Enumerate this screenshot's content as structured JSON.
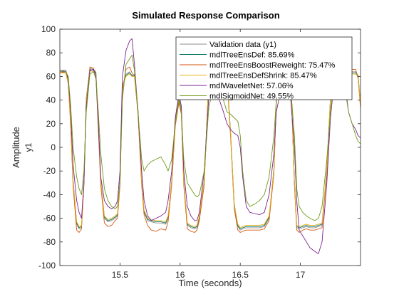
{
  "chart_data": {
    "type": "line",
    "title": "Simulated Response Comparison",
    "xlabel": "Time (seconds)",
    "ylabel": "Amplitude",
    "channel_label": "y1",
    "xlim": [
      15.0,
      17.5
    ],
    "ylim": [
      -100,
      100
    ],
    "xticks": [
      15.5,
      16,
      16.5,
      17
    ],
    "xtick_labels": [
      "15.5",
      "16",
      "16.5",
      "17"
    ],
    "yticks": [
      -100,
      -80,
      -60,
      -40,
      -20,
      0,
      20,
      40,
      60,
      80,
      100
    ],
    "ytick_labels": [
      "-100",
      "-80",
      "-60",
      "-40",
      "-20",
      "0",
      "20",
      "40",
      "60",
      "80",
      "100"
    ],
    "grid": false,
    "legend_position": "top-right",
    "series": [
      {
        "name": "Validation data (y1)",
        "color": "#8c8c8c",
        "x": [
          15.0,
          15.05,
          15.07,
          15.09,
          15.11,
          15.14,
          15.16,
          15.18,
          15.2,
          15.22,
          15.25,
          15.28,
          15.3,
          15.32,
          15.34,
          15.37,
          15.4,
          15.43,
          15.46,
          15.48,
          15.5,
          15.52,
          15.55,
          15.58,
          15.6,
          15.62,
          15.65,
          15.68,
          15.7,
          15.73,
          15.76,
          15.8,
          15.84,
          15.88,
          15.9,
          15.93,
          15.96,
          15.99,
          16.01,
          16.03,
          16.06,
          16.09,
          16.12,
          16.14,
          16.16,
          16.2,
          16.24,
          16.28,
          16.32,
          16.36,
          16.39,
          16.42,
          16.45,
          16.48,
          16.5,
          16.52,
          16.55,
          16.58,
          16.62,
          16.66,
          16.7,
          16.74,
          16.78,
          16.8,
          16.83,
          16.86,
          16.89,
          16.92,
          16.95,
          16.97,
          16.99,
          17.02,
          17.05,
          17.08,
          17.12,
          17.15,
          17.18,
          17.22,
          17.25,
          17.28,
          17.31,
          17.34,
          17.37,
          17.4,
          17.43,
          17.46,
          17.48,
          17.5
        ],
        "y": [
          64,
          64,
          55,
          20,
          -30,
          -65,
          -69,
          -68,
          -30,
          40,
          67,
          66,
          64,
          20,
          -30,
          -60,
          -63,
          -62,
          -60,
          -58,
          -30,
          50,
          62,
          64,
          60,
          62,
          30,
          -30,
          -55,
          -62,
          -63,
          -64,
          -64,
          -65,
          -60,
          -30,
          20,
          40,
          30,
          -30,
          -66,
          -68,
          -69,
          -68,
          -60,
          -30,
          62,
          66,
          65,
          64,
          60,
          10,
          -50,
          -67,
          -70,
          -69,
          -68,
          -68,
          -68,
          -68,
          -67,
          -60,
          -20,
          40,
          60,
          64,
          64,
          62,
          -30,
          -68,
          -69,
          -68,
          -67,
          -68,
          -68,
          -67,
          -66,
          -20,
          40,
          65,
          64,
          65,
          64,
          65,
          64,
          64,
          60,
          35
        ]
      },
      {
        "name": "mdlTreeEnsDef: 85.69%",
        "color": "#0b7a6b",
        "x": [
          15.0,
          15.05,
          15.07,
          15.09,
          15.11,
          15.14,
          15.16,
          15.18,
          15.2,
          15.22,
          15.25,
          15.28,
          15.3,
          15.32,
          15.34,
          15.37,
          15.4,
          15.43,
          15.46,
          15.48,
          15.5,
          15.52,
          15.55,
          15.58,
          15.6,
          15.62,
          15.65,
          15.68,
          15.7,
          15.73,
          15.76,
          15.8,
          15.84,
          15.88,
          15.9,
          15.93,
          15.96,
          15.99,
          16.01,
          16.03,
          16.06,
          16.09,
          16.12,
          16.14,
          16.16,
          16.2,
          16.24,
          16.28,
          16.32,
          16.36,
          16.39,
          16.42,
          16.45,
          16.48,
          16.5,
          16.52,
          16.55,
          16.58,
          16.62,
          16.66,
          16.7,
          16.74,
          16.78,
          16.8,
          16.83,
          16.86,
          16.89,
          16.92,
          16.95,
          16.97,
          16.99,
          17.02,
          17.05,
          17.08,
          17.12,
          17.15,
          17.18,
          17.22,
          17.25,
          17.28,
          17.31,
          17.34,
          17.37,
          17.4,
          17.43,
          17.46,
          17.48,
          17.5
        ],
        "y": [
          64,
          64,
          56,
          22,
          -28,
          -64,
          -68,
          -67,
          -28,
          42,
          66,
          65,
          63,
          22,
          -28,
          -59,
          -62,
          -61,
          -59,
          -57,
          -28,
          52,
          61,
          63,
          61,
          61,
          32,
          -28,
          -54,
          -61,
          -62,
          -63,
          -63,
          -64,
          -59,
          -28,
          22,
          42,
          32,
          -28,
          -65,
          -67,
          -68,
          -67,
          -59,
          -28,
          61,
          65,
          64,
          63,
          61,
          12,
          -48,
          -66,
          -69,
          -68,
          -67,
          -67,
          -67,
          -67,
          -66,
          -59,
          -18,
          42,
          61,
          63,
          63,
          61,
          -28,
          -67,
          -68,
          -67,
          -66,
          -67,
          -67,
          -66,
          -65,
          -18,
          42,
          64,
          63,
          64,
          63,
          64,
          63,
          63,
          61,
          37
        ]
      },
      {
        "name": "mdlTreeEnsBoostReweight: 75.47%",
        "color": "#d3570f",
        "x": [
          15.0,
          15.05,
          15.07,
          15.09,
          15.11,
          15.14,
          15.16,
          15.18,
          15.2,
          15.22,
          15.25,
          15.28,
          15.3,
          15.32,
          15.34,
          15.37,
          15.4,
          15.43,
          15.46,
          15.48,
          15.5,
          15.52,
          15.55,
          15.58,
          15.6,
          15.62,
          15.65,
          15.68,
          15.7,
          15.73,
          15.76,
          15.8,
          15.84,
          15.88,
          15.9,
          15.93,
          15.96,
          15.99,
          16.01,
          16.03,
          16.06,
          16.09,
          16.12,
          16.14,
          16.16,
          16.2,
          16.24,
          16.28,
          16.32,
          16.36,
          16.39,
          16.42,
          16.45,
          16.48,
          16.5,
          16.52,
          16.55,
          16.58,
          16.62,
          16.66,
          16.7,
          16.74,
          16.78,
          16.8,
          16.83,
          16.86,
          16.89,
          16.92,
          16.95,
          16.97,
          16.99,
          17.02,
          17.05,
          17.08,
          17.12,
          17.15,
          17.18,
          17.22,
          17.25,
          17.28,
          17.31,
          17.34,
          17.37,
          17.4,
          17.43,
          17.46,
          17.48,
          17.5
        ],
        "y": [
          64,
          63,
          54,
          18,
          -33,
          -70,
          -72,
          -69,
          -32,
          38,
          68,
          67,
          60,
          15,
          -32,
          -64,
          -67,
          -66,
          -62,
          -60,
          -32,
          48,
          66,
          68,
          63,
          60,
          28,
          -32,
          -57,
          -66,
          -70,
          -71,
          -69,
          -70,
          -63,
          -32,
          18,
          38,
          28,
          -32,
          -69,
          -71,
          -72,
          -70,
          -62,
          -32,
          60,
          68,
          67,
          66,
          58,
          8,
          -52,
          -70,
          -72,
          -71,
          -70,
          -70,
          -70,
          -70,
          -69,
          -62,
          -22,
          38,
          62,
          66,
          66,
          60,
          -32,
          -70,
          -72,
          -70,
          -69,
          -70,
          -70,
          -69,
          -68,
          -22,
          38,
          67,
          66,
          67,
          66,
          67,
          66,
          66,
          58,
          33
        ]
      },
      {
        "name": "mdlTreeEnsDefShrink: 85.47%",
        "color": "#e8b116",
        "x": [
          15.0,
          15.05,
          15.07,
          15.09,
          15.11,
          15.14,
          15.16,
          15.18,
          15.2,
          15.22,
          15.25,
          15.28,
          15.3,
          15.32,
          15.34,
          15.37,
          15.4,
          15.43,
          15.46,
          15.48,
          15.5,
          15.52,
          15.55,
          15.58,
          15.6,
          15.62,
          15.65,
          15.68,
          15.7,
          15.73,
          15.76,
          15.8,
          15.84,
          15.88,
          15.9,
          15.93,
          15.96,
          15.99,
          16.01,
          16.03,
          16.06,
          16.09,
          16.12,
          16.14,
          16.16,
          16.2,
          16.24,
          16.28,
          16.32,
          16.36,
          16.39,
          16.42,
          16.45,
          16.48,
          16.5,
          16.52,
          16.55,
          16.58,
          16.62,
          16.66,
          16.7,
          16.74,
          16.78,
          16.8,
          16.83,
          16.86,
          16.89,
          16.92,
          16.95,
          16.97,
          16.99,
          17.02,
          17.05,
          17.08,
          17.12,
          17.15,
          17.18,
          17.22,
          17.25,
          17.28,
          17.31,
          17.34,
          17.37,
          17.4,
          17.43,
          17.46,
          17.48,
          17.5
        ],
        "y": [
          63,
          63,
          55,
          21,
          -29,
          -63,
          -67,
          -66,
          -29,
          41,
          65,
          64,
          62,
          21,
          -29,
          -58,
          -61,
          -60,
          -58,
          -56,
          -29,
          51,
          60,
          62,
          60,
          60,
          31,
          -29,
          -53,
          -60,
          -61,
          -62,
          -62,
          -63,
          -58,
          -29,
          21,
          41,
          31,
          -29,
          -64,
          -66,
          -67,
          -66,
          -58,
          -29,
          60,
          64,
          63,
          62,
          60,
          11,
          -49,
          -65,
          -68,
          -67,
          -66,
          -66,
          -66,
          -66,
          -65,
          -58,
          -19,
          41,
          60,
          62,
          62,
          60,
          -29,
          -66,
          -67,
          -66,
          -65,
          -66,
          -66,
          -65,
          -64,
          -19,
          41,
          63,
          62,
          63,
          62,
          63,
          62,
          62,
          60,
          36
        ]
      },
      {
        "name": "mdlWaveletNet: 57.06%",
        "color": "#7b2390",
        "x": [
          15.0,
          15.05,
          15.07,
          15.09,
          15.11,
          15.14,
          15.16,
          15.18,
          15.2,
          15.22,
          15.25,
          15.28,
          15.3,
          15.32,
          15.34,
          15.37,
          15.4,
          15.43,
          15.46,
          15.48,
          15.5,
          15.52,
          15.55,
          15.58,
          15.6,
          15.62,
          15.65,
          15.68,
          15.7,
          15.73,
          15.76,
          15.8,
          15.84,
          15.88,
          15.9,
          15.93,
          15.96,
          15.99,
          16.01,
          16.03,
          16.06,
          16.09,
          16.12,
          16.14,
          16.16,
          16.2,
          16.24,
          16.28,
          16.32,
          16.36,
          16.39,
          16.42,
          16.45,
          16.48,
          16.5,
          16.52,
          16.55,
          16.58,
          16.62,
          16.66,
          16.7,
          16.74,
          16.78,
          16.8,
          16.83,
          16.86,
          16.89,
          16.92,
          16.95,
          16.97,
          16.99,
          17.02,
          17.05,
          17.08,
          17.12,
          17.15,
          17.18,
          17.22,
          17.25,
          17.28,
          17.31,
          17.34,
          17.37,
          17.4,
          17.43,
          17.46,
          17.48,
          17.5
        ],
        "y": [
          65,
          65,
          58,
          30,
          -15,
          -45,
          -55,
          -60,
          -30,
          35,
          65,
          66,
          60,
          20,
          -25,
          -45,
          -50,
          -52,
          -50,
          -45,
          -20,
          60,
          82,
          90,
          92,
          70,
          30,
          -20,
          -45,
          -58,
          -62,
          -60,
          -58,
          -55,
          -45,
          -20,
          25,
          45,
          35,
          -20,
          -50,
          -58,
          -62,
          -62,
          -55,
          -20,
          45,
          48,
          42,
          30,
          20,
          15,
          12,
          10,
          0,
          -25,
          -50,
          -55,
          -56,
          -57,
          -55,
          -40,
          -5,
          30,
          45,
          48,
          50,
          40,
          0,
          -45,
          -70,
          -75,
          -80,
          -85,
          -88,
          -90,
          -80,
          -30,
          25,
          55,
          60,
          62,
          55,
          30,
          20,
          15,
          10,
          8
        ]
      },
      {
        "name": "mdlSigmoidNet: 49.55%",
        "color": "#6f9a1a",
        "x": [
          15.0,
          15.05,
          15.07,
          15.09,
          15.11,
          15.14,
          15.16,
          15.18,
          15.2,
          15.22,
          15.25,
          15.28,
          15.3,
          15.32,
          15.34,
          15.37,
          15.4,
          15.43,
          15.46,
          15.48,
          15.5,
          15.52,
          15.55,
          15.58,
          15.6,
          15.62,
          15.65,
          15.68,
          15.7,
          15.73,
          15.76,
          15.8,
          15.84,
          15.88,
          15.9,
          15.93,
          15.96,
          15.99,
          16.01,
          16.03,
          16.06,
          16.09,
          16.12,
          16.14,
          16.16,
          16.2,
          16.24,
          16.28,
          16.32,
          16.36,
          16.39,
          16.42,
          16.45,
          16.48,
          16.5,
          16.52,
          16.55,
          16.58,
          16.62,
          16.66,
          16.7,
          16.74,
          16.78,
          16.8,
          16.83,
          16.86,
          16.89,
          16.92,
          16.95,
          16.97,
          16.99,
          17.02,
          17.05,
          17.08,
          17.12,
          17.15,
          17.18,
          17.22,
          17.25,
          17.28,
          17.31,
          17.34,
          17.37,
          17.4,
          17.43,
          17.46,
          17.48,
          17.5
        ],
        "y": [
          65,
          64,
          60,
          35,
          0,
          -25,
          -35,
          -40,
          -20,
          30,
          62,
          64,
          58,
          30,
          -5,
          -35,
          -45,
          -50,
          -52,
          -50,
          -30,
          40,
          70,
          75,
          78,
          65,
          30,
          -10,
          -20,
          -15,
          -12,
          -10,
          -8,
          -15,
          -20,
          -10,
          20,
          40,
          30,
          -10,
          -30,
          -35,
          -40,
          -42,
          -40,
          -20,
          35,
          50,
          52,
          40,
          30,
          28,
          25,
          22,
          10,
          -20,
          -45,
          -50,
          -48,
          -45,
          -40,
          -25,
          10,
          40,
          55,
          58,
          60,
          50,
          10,
          -35,
          -50,
          -55,
          -58,
          -60,
          -62,
          -60,
          -50,
          -10,
          30,
          55,
          60,
          62,
          50,
          30,
          20,
          10,
          5,
          3
        ]
      }
    ]
  }
}
